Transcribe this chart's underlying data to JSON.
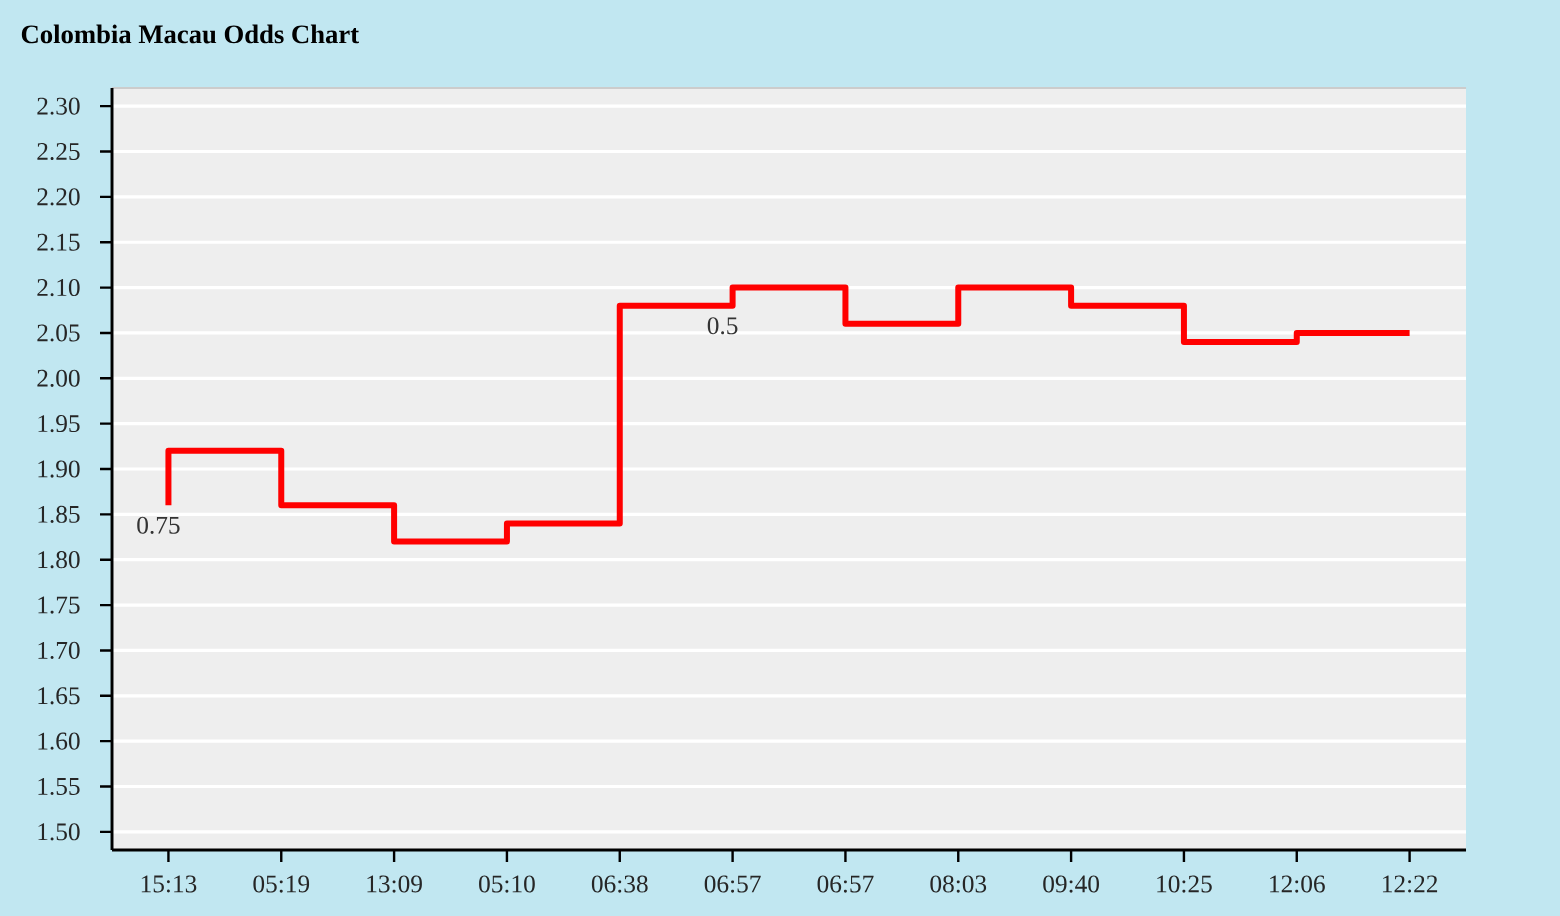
{
  "chart_data": {
    "type": "step",
    "title": "Colombia Macau Odds Chart",
    "categories": [
      "15:13",
      "05:19",
      "13:09",
      "05:10",
      "06:38",
      "06:57",
      "06:57",
      "08:03",
      "09:40",
      "10:25",
      "12:06",
      "12:22"
    ],
    "values": [
      1.86,
      1.92,
      1.86,
      1.82,
      1.84,
      2.08,
      2.1,
      2.06,
      2.1,
      2.08,
      2.04,
      2.05
    ],
    "color": "#ff0000",
    "ylim": [
      1.48,
      2.32
    ],
    "yticks": [
      {
        "value": 1.5,
        "label": "1.50"
      },
      1.55,
      {
        "value": 1.6,
        "label": "1.60"
      },
      1.65,
      {
        "value": 1.7,
        "label": "1.70"
      },
      1.75,
      {
        "value": 1.8,
        "label": "1.80"
      },
      1.85,
      {
        "value": 1.9,
        "label": "1.90"
      },
      1.95,
      {
        "value": 2.0,
        "label": "2.00"
      },
      2.05,
      {
        "value": 2.1,
        "label": "2.10"
      },
      2.15,
      {
        "value": 2.2,
        "label": "2.20"
      },
      2.25,
      {
        "value": 2.3,
        "label": "2.30"
      }
    ],
    "grid": "y",
    "annotations": [
      {
        "text": "0.75",
        "x": "15:13",
        "y": 1.86
      },
      {
        "text": "0.5",
        "x": "06:57",
        "y": 2.08
      }
    ]
  }
}
